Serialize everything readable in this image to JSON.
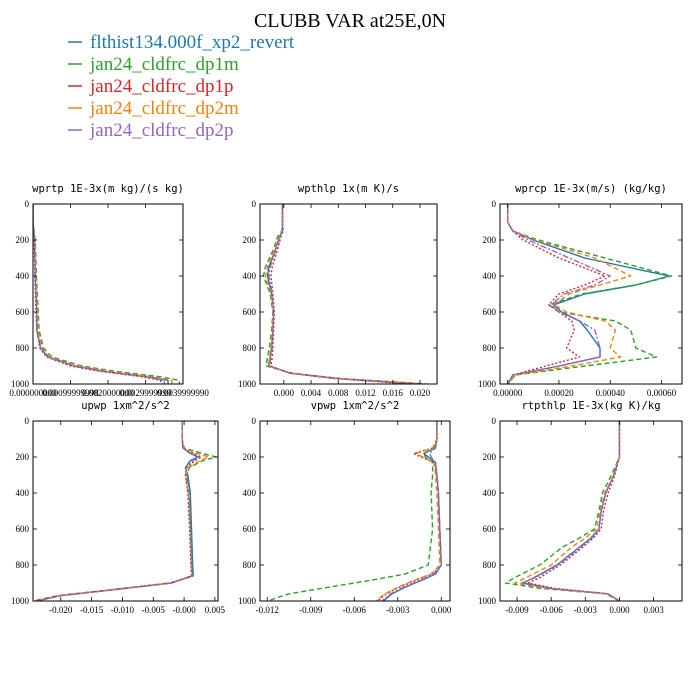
{
  "figure": {
    "title": "CLUBB VAR at25E,0N"
  },
  "legend": {
    "entries": [
      {
        "label": "flthist134.000f_xp2_revert",
        "color": "#1f77b4",
        "dash": "solid"
      },
      {
        "label": "jan24_cldfrc_dp1m",
        "color": "#2ca02c",
        "dash": "dashed"
      },
      {
        "label": "jan24_cldfrc_dp1p",
        "color": "#d62728",
        "dash": "dotted"
      },
      {
        "label": "jan24_cldfrc_dp2m",
        "color": "#ff7f0e",
        "dash": "dashed"
      },
      {
        "label": "jan24_cldfrc_dp2p",
        "color": "#9467bd",
        "dash": "dashdot"
      }
    ]
  },
  "chart_data": [
    {
      "type": "line",
      "title": "wprtp  1E-3x(m kg)/(s kg)",
      "xlim": [
        0,
        0.004
      ],
      "ylim": [
        1000,
        0
      ],
      "xticks": [
        0,
        0.001,
        0.002,
        0.003,
        0.004
      ],
      "xtick_labels": [
        "0.000000000",
        "0.00099999998",
        "0.0020000000",
        "0.0029999999",
        "0.0039999990"
      ],
      "yticks": [
        0,
        200,
        400,
        600,
        800,
        1000
      ],
      "y": [
        0,
        100,
        200,
        400,
        600,
        700,
        800,
        850,
        900,
        930,
        960,
        980,
        1000
      ],
      "series": [
        {
          "name": "flthist134.000f_xp2_revert",
          "values": [
            0,
            0,
            4e-05,
            6e-05,
            0.0001,
            0.0001,
            0.0002,
            0.0004,
            0.0011,
            0.0019,
            0.0031,
            0.0036,
            0.0036
          ]
        },
        {
          "name": "jan24_cldfrc_dp1m",
          "values": [
            0,
            0,
            6e-05,
            9e-05,
            0.00014,
            0.00016,
            0.00028,
            0.0005,
            0.0013,
            0.0022,
            0.0034,
            0.0039,
            0.0039
          ]
        },
        {
          "name": "jan24_cldfrc_dp1p",
          "values": [
            0,
            0,
            3e-05,
            5e-05,
            8e-05,
            0.0001,
            0.00018,
            0.00036,
            0.001,
            0.0018,
            0.0029,
            0.0034,
            0.0034
          ]
        },
        {
          "name": "jan24_cldfrc_dp2m",
          "values": [
            0,
            0,
            5e-05,
            7e-05,
            0.00012,
            0.00013,
            0.00024,
            0.00044,
            0.0012,
            0.002,
            0.0032,
            0.0037,
            0.0037
          ]
        },
        {
          "name": "jan24_cldfrc_dp2p",
          "values": [
            0,
            0,
            4e-05,
            6e-05,
            0.0001,
            0.00011,
            0.0002,
            0.0004,
            0.0011,
            0.0019,
            0.003,
            0.0035,
            0.0035
          ]
        }
      ]
    },
    {
      "type": "line",
      "title": "wpthlp  1x(m K)/s",
      "xlim": [
        -0.0035,
        0.0225
      ],
      "ylim": [
        1000,
        0
      ],
      "xticks": [
        0,
        0.004,
        0.008,
        0.012,
        0.016,
        0.02
      ],
      "xtick_labels": [
        "0.000",
        "0.004",
        "0.008",
        "0.012",
        "0.016",
        "0.020"
      ],
      "yticks": [
        0,
        200,
        400,
        600,
        800,
        1000
      ],
      "y": [
        0,
        100,
        150,
        180,
        250,
        350,
        400,
        500,
        600,
        700,
        800,
        850,
        900,
        940,
        970,
        990,
        1000
      ],
      "series": [
        {
          "name": "flthist134.000f_xp2_revert",
          "values": [
            -0.0002,
            -0.0002,
            -0.0002,
            -0.0006,
            -0.0012,
            -0.0022,
            -0.0024,
            -0.0018,
            -0.0015,
            -0.0016,
            -0.0018,
            -0.002,
            -0.0022,
            0.001,
            0.008,
            0.016,
            0.02
          ]
        },
        {
          "name": "jan24_cldfrc_dp1m",
          "values": [
            -0.0002,
            -0.0002,
            -0.0003,
            -0.0009,
            -0.0015,
            -0.0027,
            -0.003,
            -0.002,
            -0.0016,
            -0.0018,
            -0.0021,
            -0.0024,
            -0.0026,
            0.0012,
            0.0085,
            0.017,
            0.021
          ]
        },
        {
          "name": "jan24_cldfrc_dp1p",
          "values": [
            -0.0002,
            -0.0002,
            -0.0001,
            -0.0004,
            -0.0009,
            -0.0017,
            -0.0019,
            -0.0016,
            -0.0014,
            -0.0015,
            -0.0016,
            -0.0017,
            -0.0019,
            0.0008,
            0.0075,
            0.015,
            0.019
          ]
        },
        {
          "name": "jan24_cldfrc_dp2m",
          "values": [
            -0.0002,
            -0.0002,
            -0.0002,
            -0.0007,
            -0.0013,
            -0.0024,
            -0.0027,
            -0.0019,
            -0.0015,
            -0.0017,
            -0.0019,
            -0.0021,
            -0.0023,
            0.0011,
            0.0082,
            0.0165,
            0.0205
          ]
        },
        {
          "name": "jan24_cldfrc_dp2p",
          "values": [
            -0.0002,
            -0.0002,
            -0.0002,
            -0.0005,
            -0.0011,
            -0.002,
            -0.0022,
            -0.0017,
            -0.0015,
            -0.0016,
            -0.0017,
            -0.0019,
            -0.0021,
            0.0009,
            0.0078,
            0.0155,
            0.0195
          ]
        }
      ]
    },
    {
      "type": "line",
      "title": "wprcp  1E-3x(m/s) (kg/kg)",
      "xlim": [
        -3e-05,
        0.00068
      ],
      "ylim": [
        1000,
        0
      ],
      "xticks": [
        0,
        0.0002,
        0.0004,
        0.0006
      ],
      "xtick_labels": [
        "0.00000",
        "0.00020",
        "0.00040",
        "0.00060"
      ],
      "yticks": [
        0,
        200,
        400,
        600,
        800,
        1000
      ],
      "y": [
        0,
        100,
        150,
        200,
        300,
        400,
        450,
        500,
        560,
        600,
        650,
        700,
        800,
        850,
        900,
        950,
        1000
      ],
      "series": [
        {
          "name": "flthist134.000f_xp2_revert",
          "values": [
            0,
            0,
            2e-05,
            0.0001,
            0.0003,
            0.00063,
            0.0005,
            0.0003,
            0.00018,
            0.00021,
            0.00028,
            0.00031,
            0.00036,
            0.00036,
            0.0002,
            2e-05,
            0
          ]
        },
        {
          "name": "jan24_cldfrc_dp1m",
          "values": [
            0,
            0,
            2e-05,
            0.00012,
            0.00038,
            0.00064,
            0.0005,
            0.00029,
            0.00016,
            0.0002,
            0.00042,
            0.00048,
            0.0005,
            0.00058,
            0.0003,
            3e-05,
            0
          ]
        },
        {
          "name": "jan24_cldfrc_dp1p",
          "values": [
            0,
            0,
            2e-05,
            6e-05,
            0.0002,
            0.00038,
            0.0003,
            0.0002,
            0.00016,
            0.0002,
            0.00025,
            0.00026,
            0.00023,
            0.00028,
            0.00015,
            2e-05,
            0
          ]
        },
        {
          "name": "jan24_cldfrc_dp2m",
          "values": [
            0,
            0,
            2e-05,
            0.00011,
            0.00034,
            0.00048,
            0.00036,
            0.00024,
            0.00018,
            0.00023,
            0.00038,
            0.00042,
            0.0004,
            0.00044,
            0.00025,
            3e-05,
            0
          ]
        },
        {
          "name": "jan24_cldfrc_dp2p",
          "values": [
            0,
            0,
            2e-05,
            8e-05,
            0.00024,
            0.0004,
            0.00034,
            0.00022,
            0.00017,
            0.0002,
            0.00028,
            0.00034,
            0.00036,
            0.00036,
            0.0002,
            2e-05,
            0
          ]
        }
      ]
    },
    {
      "type": "line",
      "title": "upwp  1xm^2/s^2",
      "xlim": [
        -0.0245,
        0.0055
      ],
      "ylim": [
        1000,
        0
      ],
      "xticks": [
        -0.02,
        -0.015,
        -0.01,
        -0.005,
        0,
        0.005
      ],
      "xtick_labels": [
        "-0.020",
        "-0.015",
        "-0.010",
        "-0.005",
        "-0.000",
        "0.005"
      ],
      "yticks": [
        0,
        200,
        400,
        600,
        800,
        1000
      ],
      "y": [
        0,
        100,
        150,
        180,
        200,
        220,
        260,
        300,
        400,
        600,
        800,
        860,
        900,
        940,
        970,
        1000
      ],
      "series": [
        {
          "name": "flthist134.000f_xp2_revert",
          "values": [
            -0.0003,
            -0.0003,
            -0.0002,
            0.001,
            0.0022,
            0.001,
            0.0002,
            0.0006,
            0.001,
            0.0012,
            0.0014,
            0.0015,
            -0.002,
            -0.012,
            -0.02,
            -0.024
          ]
        },
        {
          "name": "jan24_cldfrc_dp1m",
          "values": [
            -0.0003,
            -0.0003,
            0,
            0.003,
            0.0052,
            0.003,
            0.0008,
            0.0005,
            0.0009,
            0.0011,
            0.0013,
            0.0014,
            -0.0022,
            -0.0125,
            -0.0205,
            -0.0245
          ]
        },
        {
          "name": "jan24_cldfrc_dp1p",
          "values": [
            -0.0003,
            -0.0003,
            -0.0001,
            0.0015,
            0.0028,
            0.0018,
            0.0004,
            0.0002,
            0.0006,
            0.0009,
            0.0011,
            0.0012,
            -0.0023,
            -0.0125,
            -0.02,
            -0.024
          ]
        },
        {
          "name": "jan24_cldfrc_dp2m",
          "values": [
            -0.0003,
            -0.0003,
            -0.0001,
            0.0022,
            0.004,
            0.0026,
            0.0006,
            0.0002,
            0.0007,
            0.001,
            0.0012,
            0.0013,
            -0.002,
            -0.0122,
            -0.0202,
            -0.0242
          ]
        },
        {
          "name": "jan24_cldfrc_dp2p",
          "values": [
            -0.0003,
            -0.0003,
            -0.0002,
            0.0012,
            0.0024,
            0.0014,
            0.0003,
            0.0004,
            0.0008,
            0.001,
            0.0012,
            0.0013,
            -0.0021,
            -0.0122,
            -0.02,
            -0.024
          ]
        }
      ]
    },
    {
      "type": "line",
      "title": "vpwp  1xm^2/s^2",
      "xlim": [
        -0.0125,
        0.0006
      ],
      "ylim": [
        1000,
        0
      ],
      "xticks": [
        -0.012,
        -0.009,
        -0.006,
        -0.003,
        0
      ],
      "xtick_labels": [
        "-0.012",
        "-0.009",
        "-0.006",
        "-0.003",
        "0.000"
      ],
      "yticks": [
        0,
        200,
        400,
        600,
        800,
        1000
      ],
      "y": [
        0,
        100,
        150,
        180,
        200,
        230,
        300,
        400,
        600,
        800,
        850,
        880,
        920,
        960,
        1000
      ],
      "series": [
        {
          "name": "flthist134.000f_xp2_revert",
          "values": [
            -0.0003,
            -0.0003,
            -0.0004,
            -0.0012,
            -0.0009,
            -0.0004,
            -0.0003,
            -0.0002,
            -0.0001,
            0,
            -0.0004,
            -0.0012,
            -0.0024,
            -0.0034,
            -0.004
          ]
        },
        {
          "name": "jan24_cldfrc_dp1m",
          "values": [
            -0.0003,
            -0.0003,
            -0.0005,
            -0.0012,
            -0.0011,
            -0.0006,
            -0.0006,
            -0.0007,
            -0.0006,
            -0.0009,
            -0.0025,
            -0.0045,
            -0.0075,
            -0.0105,
            -0.012
          ]
        },
        {
          "name": "jan24_cldfrc_dp1p",
          "values": [
            -0.0003,
            -0.0003,
            -0.0006,
            -0.0019,
            -0.0014,
            -0.0005,
            -0.0003,
            -0.0002,
            -0.0001,
            0,
            -0.0006,
            -0.0016,
            -0.0028,
            -0.0038,
            -0.0044
          ]
        },
        {
          "name": "jan24_cldfrc_dp2m",
          "values": [
            -0.0003,
            -0.0003,
            -0.0006,
            -0.0017,
            -0.0013,
            -0.0005,
            -0.0004,
            -0.0003,
            -0.0002,
            -0.0001,
            -0.0007,
            -0.0017,
            -0.0029,
            -0.0039,
            -0.0045
          ]
        },
        {
          "name": "jan24_cldfrc_dp2p",
          "values": [
            -0.0003,
            -0.0003,
            -0.0004,
            -0.0008,
            -0.0007,
            -0.0004,
            -0.0003,
            -0.0002,
            -0.0001,
            0,
            -0.0005,
            -0.0013,
            -0.0025,
            -0.0035,
            -0.0041
          ]
        }
      ]
    },
    {
      "type": "line",
      "title": "rtpthlp  1E-3x(kg K)/kg",
      "xlim": [
        -0.0105,
        0.0055
      ],
      "ylim": [
        1000,
        0
      ],
      "xticks": [
        -0.009,
        -0.006,
        -0.003,
        0,
        0.003
      ],
      "xtick_labels": [
        "-0.009",
        "-0.006",
        "-0.003",
        "0.000",
        "0.003"
      ],
      "yticks": [
        0,
        200,
        400,
        600,
        800,
        1000
      ],
      "y": [
        0,
        100,
        200,
        300,
        400,
        500,
        600,
        650,
        700,
        800,
        870,
        900,
        930,
        960,
        1000
      ],
      "series": [
        {
          "name": "flthist134.000f_xp2_revert",
          "values": [
            0,
            0,
            0,
            -0.0005,
            -0.0012,
            -0.0016,
            -0.0018,
            -0.0025,
            -0.0035,
            -0.0055,
            -0.0075,
            -0.0085,
            -0.006,
            -0.001,
            0
          ]
        },
        {
          "name": "jan24_cldfrc_dp1m",
          "values": [
            0,
            0,
            0,
            -0.0007,
            -0.0015,
            -0.0018,
            -0.0022,
            -0.0035,
            -0.005,
            -0.007,
            -0.0092,
            -0.01,
            -0.007,
            -0.0012,
            0
          ]
        },
        {
          "name": "jan24_cldfrc_dp1p",
          "values": [
            0,
            0,
            0,
            -0.0004,
            -0.001,
            -0.0014,
            -0.0016,
            -0.0023,
            -0.0032,
            -0.0052,
            -0.007,
            -0.008,
            -0.0057,
            -0.001,
            0
          ]
        },
        {
          "name": "jan24_cldfrc_dp2m",
          "values": [
            0,
            0,
            0,
            -0.0005,
            -0.0013,
            -0.0017,
            -0.002,
            -0.003,
            -0.0042,
            -0.006,
            -0.0082,
            -0.0092,
            -0.0065,
            -0.0011,
            0
          ]
        },
        {
          "name": "jan24_cldfrc_dp2p",
          "values": [
            0,
            0,
            0,
            -0.0005,
            -0.0012,
            -0.0016,
            -0.0018,
            -0.0024,
            -0.0034,
            -0.0054,
            -0.0074,
            -0.0086,
            -0.0062,
            -0.001,
            0
          ]
        }
      ]
    }
  ]
}
